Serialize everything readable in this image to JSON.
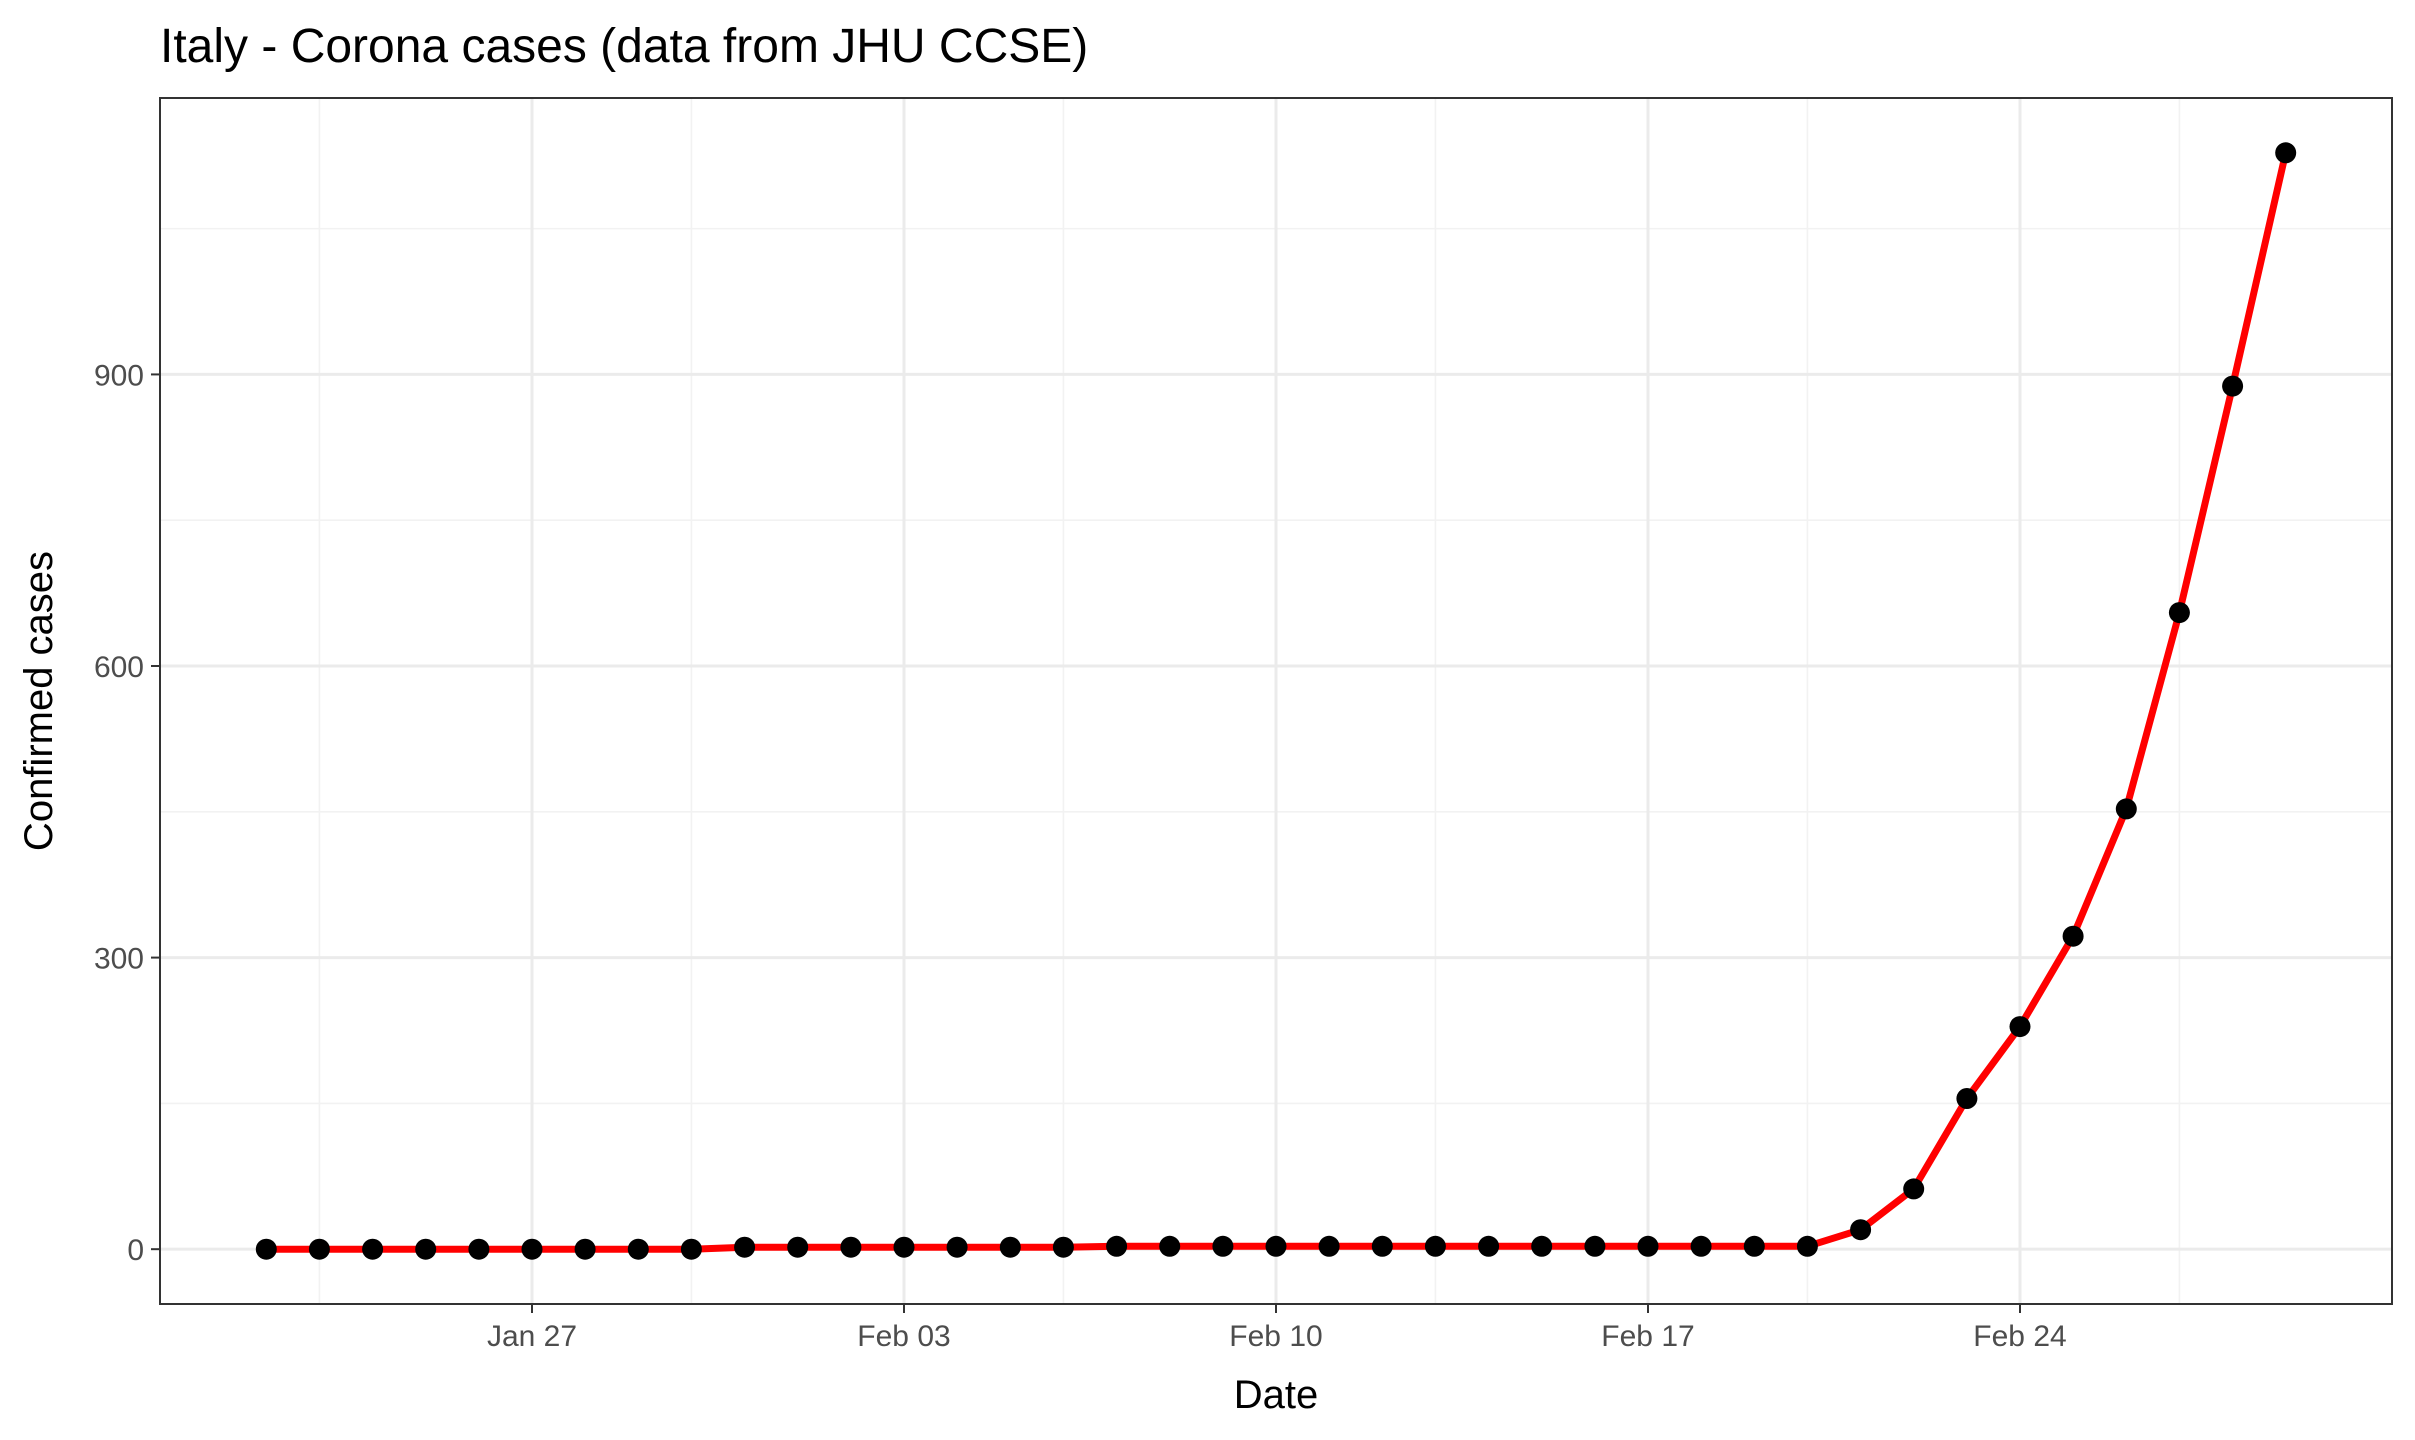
{
  "chart_data": {
    "type": "line",
    "title": "Italy - Corona cases (data from JHU CCSE)",
    "xlabel": "Date",
    "ylabel": "Confirmed cases",
    "x": [
      "2020-01-22",
      "2020-01-23",
      "2020-01-24",
      "2020-01-25",
      "2020-01-26",
      "2020-01-27",
      "2020-01-28",
      "2020-01-29",
      "2020-01-30",
      "2020-01-31",
      "2020-02-01",
      "2020-02-02",
      "2020-02-03",
      "2020-02-04",
      "2020-02-05",
      "2020-02-06",
      "2020-02-07",
      "2020-02-08",
      "2020-02-09",
      "2020-02-10",
      "2020-02-11",
      "2020-02-12",
      "2020-02-13",
      "2020-02-14",
      "2020-02-15",
      "2020-02-16",
      "2020-02-17",
      "2020-02-18",
      "2020-02-19",
      "2020-02-20",
      "2020-02-21",
      "2020-02-22",
      "2020-02-23",
      "2020-02-24",
      "2020-02-25",
      "2020-02-26",
      "2020-02-27",
      "2020-02-28",
      "2020-02-29"
    ],
    "values": [
      0,
      0,
      0,
      0,
      0,
      0,
      0,
      0,
      0,
      2,
      2,
      2,
      2,
      2,
      2,
      2,
      3,
      3,
      3,
      3,
      3,
      3,
      3,
      3,
      3,
      3,
      3,
      3,
      3,
      3,
      20,
      62,
      155,
      229,
      322,
      453,
      655,
      888,
      1128
    ],
    "xticks": [
      {
        "date": "2020-01-27",
        "label": "Jan 27"
      },
      {
        "date": "2020-02-03",
        "label": "Feb 03"
      },
      {
        "date": "2020-02-10",
        "label": "Feb 10"
      },
      {
        "date": "2020-02-17",
        "label": "Feb 17"
      },
      {
        "date": "2020-02-24",
        "label": "Feb 24"
      }
    ],
    "yticks": [
      0,
      300,
      600,
      900
    ],
    "yticks_minor": [
      150,
      450,
      750,
      1050
    ],
    "xticks_minor": [
      "2020-01-23",
      "2020-01-30",
      "2020-02-06",
      "2020-02-13",
      "2020-02-20",
      "2020-02-27"
    ],
    "xlim": [
      "2020-01-20",
      "2020-03-02"
    ],
    "ylim": [
      -56.4,
      1184.4
    ],
    "grid": true,
    "legend": "none",
    "line_color": "#ff0000",
    "point_color": "#000000"
  }
}
